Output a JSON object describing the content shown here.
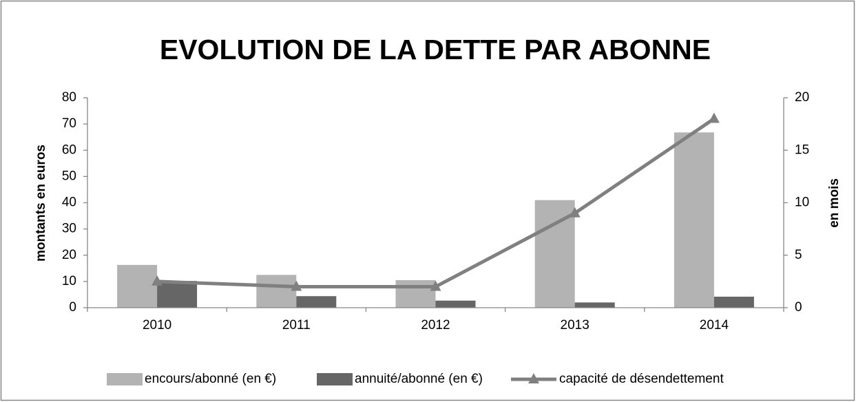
{
  "chart_data": {
    "type": "bar",
    "title": "EVOLUTION DE LA DETTE PAR ABONNE",
    "y_label": "montants en euros",
    "y2_label": "en mois",
    "categories": [
      "2010",
      "2011",
      "2012",
      "2013",
      "2014"
    ],
    "series": [
      {
        "name": "encours/abonné (en €)",
        "color": "#b3b3b3",
        "type": "bar",
        "values": [
          16.3,
          12.5,
          10.5,
          41,
          66.8
        ]
      },
      {
        "name": "annuité/abonné (en €)",
        "color": "#666666",
        "type": "bar",
        "values": [
          10.2,
          4.4,
          2.7,
          2,
          4.2
        ]
      },
      {
        "name": "capacité de désendettement",
        "color": "#808080",
        "type": "line",
        "marker": "triangle",
        "axis": "y2",
        "values": [
          2.5,
          2,
          2,
          9,
          18
        ]
      }
    ],
    "ylim": [
      0,
      80
    ],
    "yticks": [
      0,
      10,
      20,
      30,
      40,
      50,
      60,
      70,
      80
    ],
    "y2lim": [
      0,
      20
    ],
    "y2ticks": [
      0,
      5,
      10,
      15,
      20
    ],
    "grid": false,
    "legend": "bottom"
  }
}
